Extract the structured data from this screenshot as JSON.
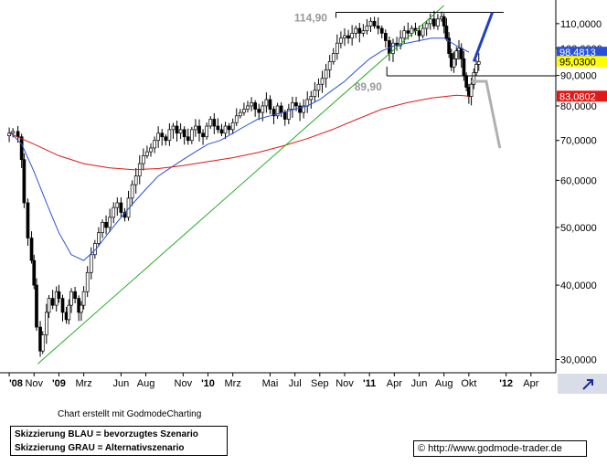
{
  "chart_data": {
    "type": "candlestick",
    "y_scale": "log",
    "ylim": [
      28.5,
      118
    ],
    "y_ticks": [
      {
        "value": 110,
        "label": "110,0000"
      },
      {
        "value": 100,
        "label": "100,0000"
      },
      {
        "value": 90,
        "label": "90,0000"
      },
      {
        "value": 80,
        "label": "80,0000"
      },
      {
        "value": 70,
        "label": "70,0000"
      },
      {
        "value": 60,
        "label": "60,0000"
      },
      {
        "value": 50,
        "label": "50,0000"
      },
      {
        "value": 40,
        "label": "40,0000"
      },
      {
        "value": 30,
        "label": "30,0000"
      }
    ],
    "x_ticks": [
      {
        "t": 0,
        "label": "'08",
        "bold": true
      },
      {
        "t": 2,
        "label": "Nov"
      },
      {
        "t": 4,
        "label": "'09",
        "bold": true
      },
      {
        "t": 6,
        "label": "Mrz"
      },
      {
        "t": 9,
        "label": "Jun"
      },
      {
        "t": 11,
        "label": "Aug"
      },
      {
        "t": 14,
        "label": "Nov"
      },
      {
        "t": 16,
        "label": "'10",
        "bold": true
      },
      {
        "t": 18,
        "label": "Mrz"
      },
      {
        "t": 21,
        "label": "Mai"
      },
      {
        "t": 23,
        "label": "Jul"
      },
      {
        "t": 25,
        "label": "Sep"
      },
      {
        "t": 27,
        "label": "Nov"
      },
      {
        "t": 29,
        "label": "'11",
        "bold": true
      },
      {
        "t": 31,
        "label": "Apr"
      },
      {
        "t": 33,
        "label": "Jun"
      },
      {
        "t": 35,
        "label": "Aug"
      },
      {
        "t": 37,
        "label": "Okt"
      },
      {
        "t": 40,
        "label": "'12",
        "bold": true
      },
      {
        "t": 42,
        "label": "Apr"
      }
    ],
    "price": [
      [
        0.0,
        72
      ],
      [
        0.3,
        72.5
      ],
      [
        0.7,
        71
      ],
      [
        1.0,
        65
      ],
      [
        1.2,
        55
      ],
      [
        1.5,
        48
      ],
      [
        1.8,
        44
      ],
      [
        2.0,
        40
      ],
      [
        2.2,
        34
      ],
      [
        2.5,
        31
      ],
      [
        2.7,
        33
      ],
      [
        3.0,
        36
      ],
      [
        3.2,
        38
      ],
      [
        3.5,
        37
      ],
      [
        3.8,
        39
      ],
      [
        4.0,
        38
      ],
      [
        4.3,
        36
      ],
      [
        4.6,
        35
      ],
      [
        4.8,
        37
      ],
      [
        5.0,
        39
      ],
      [
        5.3,
        38
      ],
      [
        5.6,
        36
      ],
      [
        5.8,
        37
      ],
      [
        6.0,
        39
      ],
      [
        6.3,
        42
      ],
      [
        6.6,
        45
      ],
      [
        6.9,
        47
      ],
      [
        7.2,
        49
      ],
      [
        7.5,
        51
      ],
      [
        7.8,
        50
      ],
      [
        8.1,
        52
      ],
      [
        8.4,
        54
      ],
      [
        8.7,
        55
      ],
      [
        9.0,
        53
      ],
      [
        9.3,
        52
      ],
      [
        9.6,
        56
      ],
      [
        9.9,
        59
      ],
      [
        10.2,
        61
      ],
      [
        10.5,
        64
      ],
      [
        10.8,
        66
      ],
      [
        11.1,
        67
      ],
      [
        11.4,
        68
      ],
      [
        11.7,
        70
      ],
      [
        12.0,
        72
      ],
      [
        12.3,
        71
      ],
      [
        12.6,
        70
      ],
      [
        12.9,
        73
      ],
      [
        13.2,
        74
      ],
      [
        13.5,
        72
      ],
      [
        13.8,
        73
      ],
      [
        14.1,
        71
      ],
      [
        14.4,
        70
      ],
      [
        14.7,
        73
      ],
      [
        15.0,
        74
      ],
      [
        15.3,
        72
      ],
      [
        15.6,
        71
      ],
      [
        15.9,
        74
      ],
      [
        16.2,
        76
      ],
      [
        16.5,
        74
      ],
      [
        16.8,
        73
      ],
      [
        17.1,
        72
      ],
      [
        17.4,
        74
      ],
      [
        17.7,
        73
      ],
      [
        18.0,
        75
      ],
      [
        18.3,
        77
      ],
      [
        18.6,
        78
      ],
      [
        18.9,
        79
      ],
      [
        19.2,
        80
      ],
      [
        19.5,
        81
      ],
      [
        19.8,
        79
      ],
      [
        20.1,
        78
      ],
      [
        20.4,
        80
      ],
      [
        20.7,
        82
      ],
      [
        21.0,
        79
      ],
      [
        21.3,
        77
      ],
      [
        21.6,
        80
      ],
      [
        21.9,
        78
      ],
      [
        22.2,
        76
      ],
      [
        22.5,
        79
      ],
      [
        22.8,
        81
      ],
      [
        23.1,
        80
      ],
      [
        23.4,
        78
      ],
      [
        23.7,
        80
      ],
      [
        24.0,
        82
      ],
      [
        24.3,
        83
      ],
      [
        24.6,
        85
      ],
      [
        24.9,
        87
      ],
      [
        25.2,
        89
      ],
      [
        25.5,
        92
      ],
      [
        25.8,
        95
      ],
      [
        26.1,
        98
      ],
      [
        26.4,
        102
      ],
      [
        26.7,
        104
      ],
      [
        27.0,
        105
      ],
      [
        27.3,
        104
      ],
      [
        27.6,
        106
      ],
      [
        27.9,
        108
      ],
      [
        28.2,
        106
      ],
      [
        28.5,
        107
      ],
      [
        28.8,
        109
      ],
      [
        29.1,
        111
      ],
      [
        29.4,
        109
      ],
      [
        29.7,
        108
      ],
      [
        30.0,
        106
      ],
      [
        30.3,
        103
      ],
      [
        30.6,
        98
      ],
      [
        30.9,
        102
      ],
      [
        31.2,
        101
      ],
      [
        31.5,
        104
      ],
      [
        31.8,
        107
      ],
      [
        32.1,
        106
      ],
      [
        32.4,
        108
      ],
      [
        32.7,
        107
      ],
      [
        33.0,
        105
      ],
      [
        33.3,
        108
      ],
      [
        33.6,
        110
      ],
      [
        33.9,
        112
      ],
      [
        34.2,
        109
      ],
      [
        34.5,
        112
      ],
      [
        34.8,
        113
      ],
      [
        35.0,
        109
      ],
      [
        35.2,
        104
      ],
      [
        35.4,
        98
      ],
      [
        35.6,
        93
      ],
      [
        35.8,
        96
      ],
      [
        36.0,
        99
      ],
      [
        36.2,
        100
      ],
      [
        36.4,
        96
      ],
      [
        36.6,
        90
      ],
      [
        36.8,
        86
      ],
      [
        37.0,
        83
      ],
      [
        37.2,
        87
      ],
      [
        37.4,
        91
      ],
      [
        37.6,
        94
      ],
      [
        37.8,
        95
      ]
    ],
    "series": [
      {
        "color": "#2850d8",
        "values": [
          [
            0,
            72.5
          ],
          [
            1,
            69
          ],
          [
            2,
            62
          ],
          [
            3,
            55
          ],
          [
            4,
            49
          ],
          [
            5,
            45
          ],
          [
            6,
            44
          ],
          [
            7,
            46
          ],
          [
            8,
            49
          ],
          [
            9,
            52
          ],
          [
            10,
            55
          ],
          [
            11,
            58
          ],
          [
            12,
            61
          ],
          [
            13,
            63
          ],
          [
            14,
            65
          ],
          [
            15,
            67
          ],
          [
            16,
            69
          ],
          [
            17,
            70
          ],
          [
            18,
            72
          ],
          [
            19,
            74
          ],
          [
            20,
            76
          ],
          [
            21,
            77
          ],
          [
            22,
            78
          ],
          [
            23,
            79
          ],
          [
            24,
            80
          ],
          [
            25,
            82
          ],
          [
            26,
            85
          ],
          [
            27,
            88
          ],
          [
            28,
            92
          ],
          [
            29,
            96
          ],
          [
            30,
            99
          ],
          [
            31,
            101
          ],
          [
            32,
            102
          ],
          [
            33,
            103
          ],
          [
            34,
            104
          ],
          [
            35,
            104
          ],
          [
            36,
            101
          ],
          [
            37,
            98.5
          ]
        ]
      },
      {
        "color": "#e01818",
        "values": [
          [
            0,
            72
          ],
          [
            2,
            69
          ],
          [
            4,
            66
          ],
          [
            6,
            64
          ],
          [
            8,
            63
          ],
          [
            10,
            62.5
          ],
          [
            12,
            62.8
          ],
          [
            14,
            63.5
          ],
          [
            16,
            64.5
          ],
          [
            18,
            65.5
          ],
          [
            20,
            66.8
          ],
          [
            22,
            68.5
          ],
          [
            24,
            70.5
          ],
          [
            26,
            73
          ],
          [
            28,
            76
          ],
          [
            30,
            79
          ],
          [
            32,
            81
          ],
          [
            34,
            82.5
          ],
          [
            36,
            83.4
          ],
          [
            37,
            83.1
          ]
        ]
      }
    ],
    "trendline": {
      "color": "#22aa22",
      "points": [
        [
          2.3,
          29.5
        ],
        [
          35.0,
          118
        ]
      ]
    },
    "resistance_line": {
      "value": 114.9
    },
    "support_line": {
      "value": 89.9
    },
    "scenario_blue": {
      "color": "#2040c0",
      "points": [
        [
          37.4,
          95
        ],
        [
          38.9,
          115
        ]
      ]
    },
    "scenario_gray": {
      "color": "#b0b0b0",
      "points": [
        [
          37.2,
          88
        ],
        [
          38.4,
          88
        ],
        [
          39.5,
          68
        ]
      ]
    },
    "annotations": [
      {
        "label": "114,90",
        "value": 114.9
      },
      {
        "label": "89,90",
        "value": 89.9
      }
    ],
    "price_tags": [
      {
        "label": "98,4813",
        "value": 98.48,
        "bg": "#2850d8",
        "fg": "#ffffff"
      },
      {
        "label": "95,0300",
        "value": 95.03,
        "bg": "#ffff00",
        "fg": "#000000"
      },
      {
        "label": "83,0802",
        "value": 83.08,
        "bg": "#e01818",
        "fg": "#ffffff"
      }
    ]
  },
  "footer": {
    "credit": "Chart erstellt mit GodmodeCharting",
    "legend_blue": "Skizzierung BLAU = bevorzugtes Szenario",
    "legend_gray": "Skizzierung GRAU = Alternativszenario",
    "url": "http://www.godmode-trader.de",
    "copyright_symbol": "©"
  },
  "colors": {
    "axis_arrow_bg": "#d8dde8"
  }
}
